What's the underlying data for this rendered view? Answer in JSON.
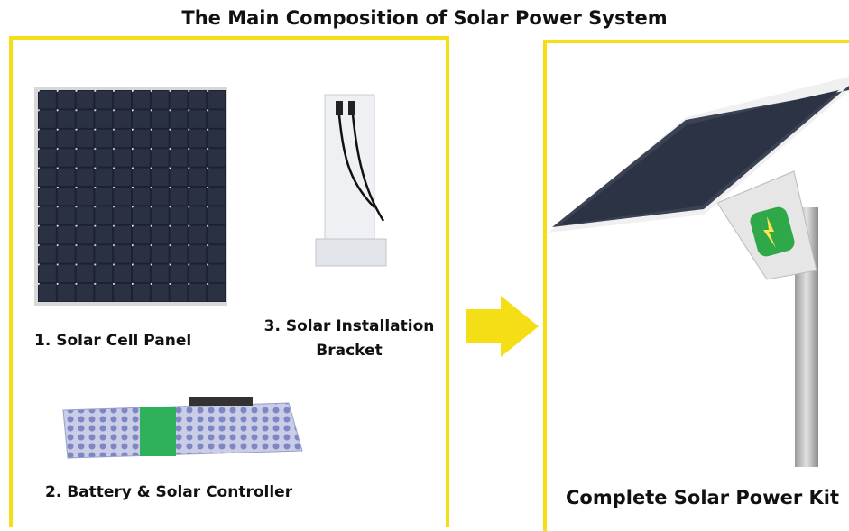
{
  "title": "The Main Composition of Solar Power System",
  "components": [
    {
      "label": "1. Solar Cell Panel"
    },
    {
      "label": "2. Battery & Solar Controller"
    },
    {
      "label": "3. Solar Installation Bracket"
    }
  ],
  "result": {
    "label": "Complete Solar Power Kit"
  }
}
